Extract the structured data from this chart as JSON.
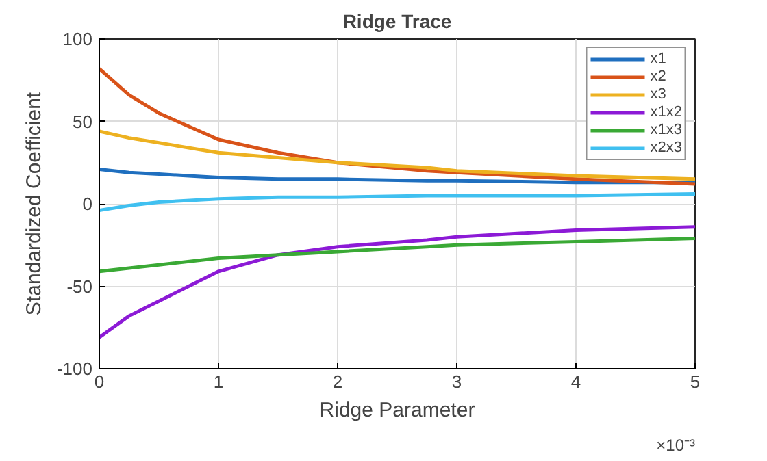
{
  "chart_data": {
    "type": "line",
    "title": "Ridge Trace",
    "xlabel": "Ridge Parameter",
    "ylabel": "Standardized Coefficient",
    "annotations": [
      "×10⁻³"
    ],
    "x": [
      0,
      0.25,
      0.5,
      1,
      1.5,
      2,
      2.75,
      3,
      4,
      5
    ],
    "series": [
      {
        "name": "x1",
        "color": "#1f6fbf",
        "values": [
          21,
          19,
          18,
          16,
          15,
          15,
          14,
          14,
          13,
          13
        ]
      },
      {
        "name": "x2",
        "color": "#d95319",
        "values": [
          82,
          66,
          55,
          39,
          31,
          25,
          20,
          19,
          15,
          12
        ]
      },
      {
        "name": "x3",
        "color": "#edb120",
        "values": [
          44,
          40,
          37,
          31,
          28,
          25,
          22,
          20,
          17,
          15
        ]
      },
      {
        "name": "x1x2",
        "color": "#8c1ad6",
        "values": [
          -81,
          -68,
          -59,
          -41,
          -31,
          -26,
          -22,
          -20,
          -16,
          -14
        ]
      },
      {
        "name": "x1x3",
        "color": "#3aa935",
        "values": [
          -41,
          -39,
          -37,
          -33,
          -31,
          -29,
          -26,
          -25,
          -23,
          -21
        ]
      },
      {
        "name": "x2x3",
        "color": "#40c0f0",
        "values": [
          -4,
          -1,
          1,
          3,
          4,
          4,
          5,
          5,
          5,
          6
        ]
      }
    ],
    "xlim": [
      0,
      5
    ],
    "ylim": [
      -100,
      100
    ],
    "xticks": [
      0,
      1,
      2,
      3,
      4,
      5
    ],
    "yticks": [
      -100,
      -50,
      0,
      50,
      100
    ],
    "grid": true,
    "legend": "top right",
    "line_style": "solid",
    "marker": "none"
  }
}
